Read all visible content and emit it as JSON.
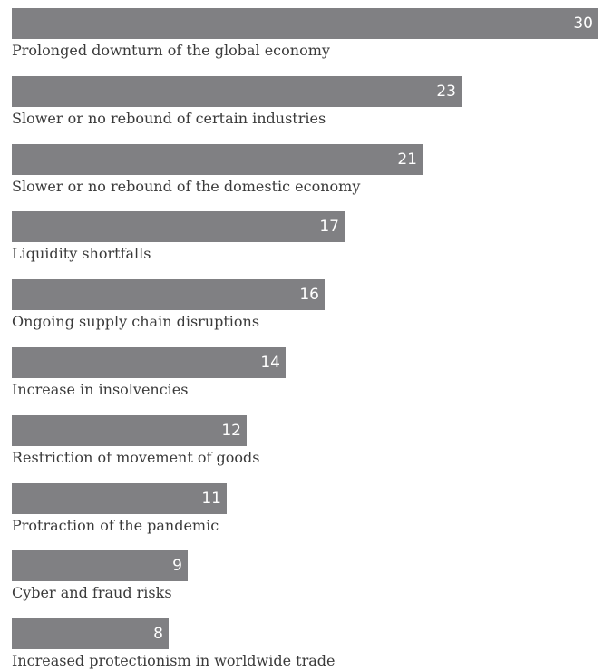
{
  "chart_data": {
    "type": "bar",
    "orientation": "horizontal",
    "categories": [
      "Prolonged downturn of the global economy",
      "Slower or no rebound of certain industries",
      "Slower or no rebound of the domestic economy",
      "Liquidity shortfalls",
      "Ongoing supply chain disruptions",
      "Increase in insolvencies",
      "Restriction of movement of goods",
      "Protraction of the pandemic",
      "Cyber and fraud risks",
      "Increased protectionism in worldwide trade"
    ],
    "values": [
      30,
      23,
      21,
      17,
      16,
      14,
      12,
      11,
      9,
      8
    ],
    "title": "",
    "xlabel": "",
    "ylabel": "",
    "xlim": [
      0,
      30
    ],
    "grid": false,
    "bar_color": "#808083",
    "value_label_color": "#ffffff"
  }
}
